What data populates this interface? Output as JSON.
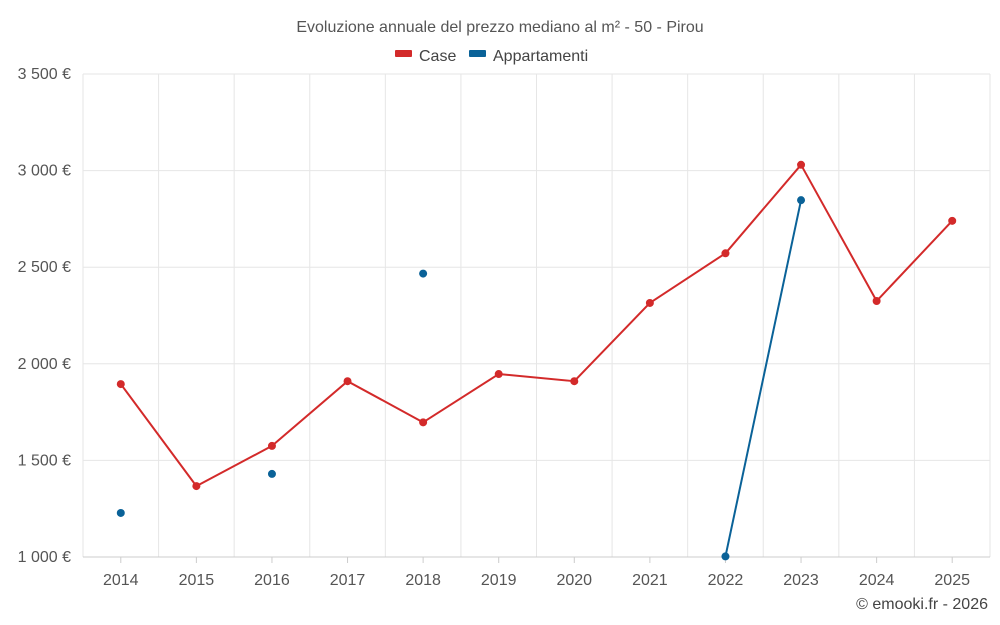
{
  "chart_data": {
    "type": "line",
    "title": "Evoluzione annuale del prezzo mediano al m² - 50 - Pirou",
    "categories": [
      "2014",
      "2015",
      "2016",
      "2017",
      "2018",
      "2019",
      "2020",
      "2021",
      "2022",
      "2023",
      "2024",
      "2025"
    ],
    "ylim": [
      1000,
      3500
    ],
    "yticks": [
      1000,
      1500,
      2000,
      2500,
      3000,
      3500
    ],
    "ytick_labels": [
      "1 000 €",
      "1 500 €",
      "2 000 €",
      "2 500 €",
      "3 000 €",
      "3 500 €"
    ],
    "grid": true,
    "legend_position": "top-center",
    "series": [
      {
        "name": "Case",
        "color": "#d32a2a",
        "values": [
          1895,
          1367,
          1575,
          1910,
          1697,
          1947,
          1910,
          2315,
          2572,
          3030,
          2325,
          2740
        ]
      },
      {
        "name": "Appartamenti",
        "color": "#0a6298",
        "values": [
          1228,
          null,
          1430,
          null,
          2467,
          null,
          null,
          null,
          1003,
          2847,
          null,
          null
        ]
      }
    ],
    "credit": "© emooki.fr - 2026"
  }
}
